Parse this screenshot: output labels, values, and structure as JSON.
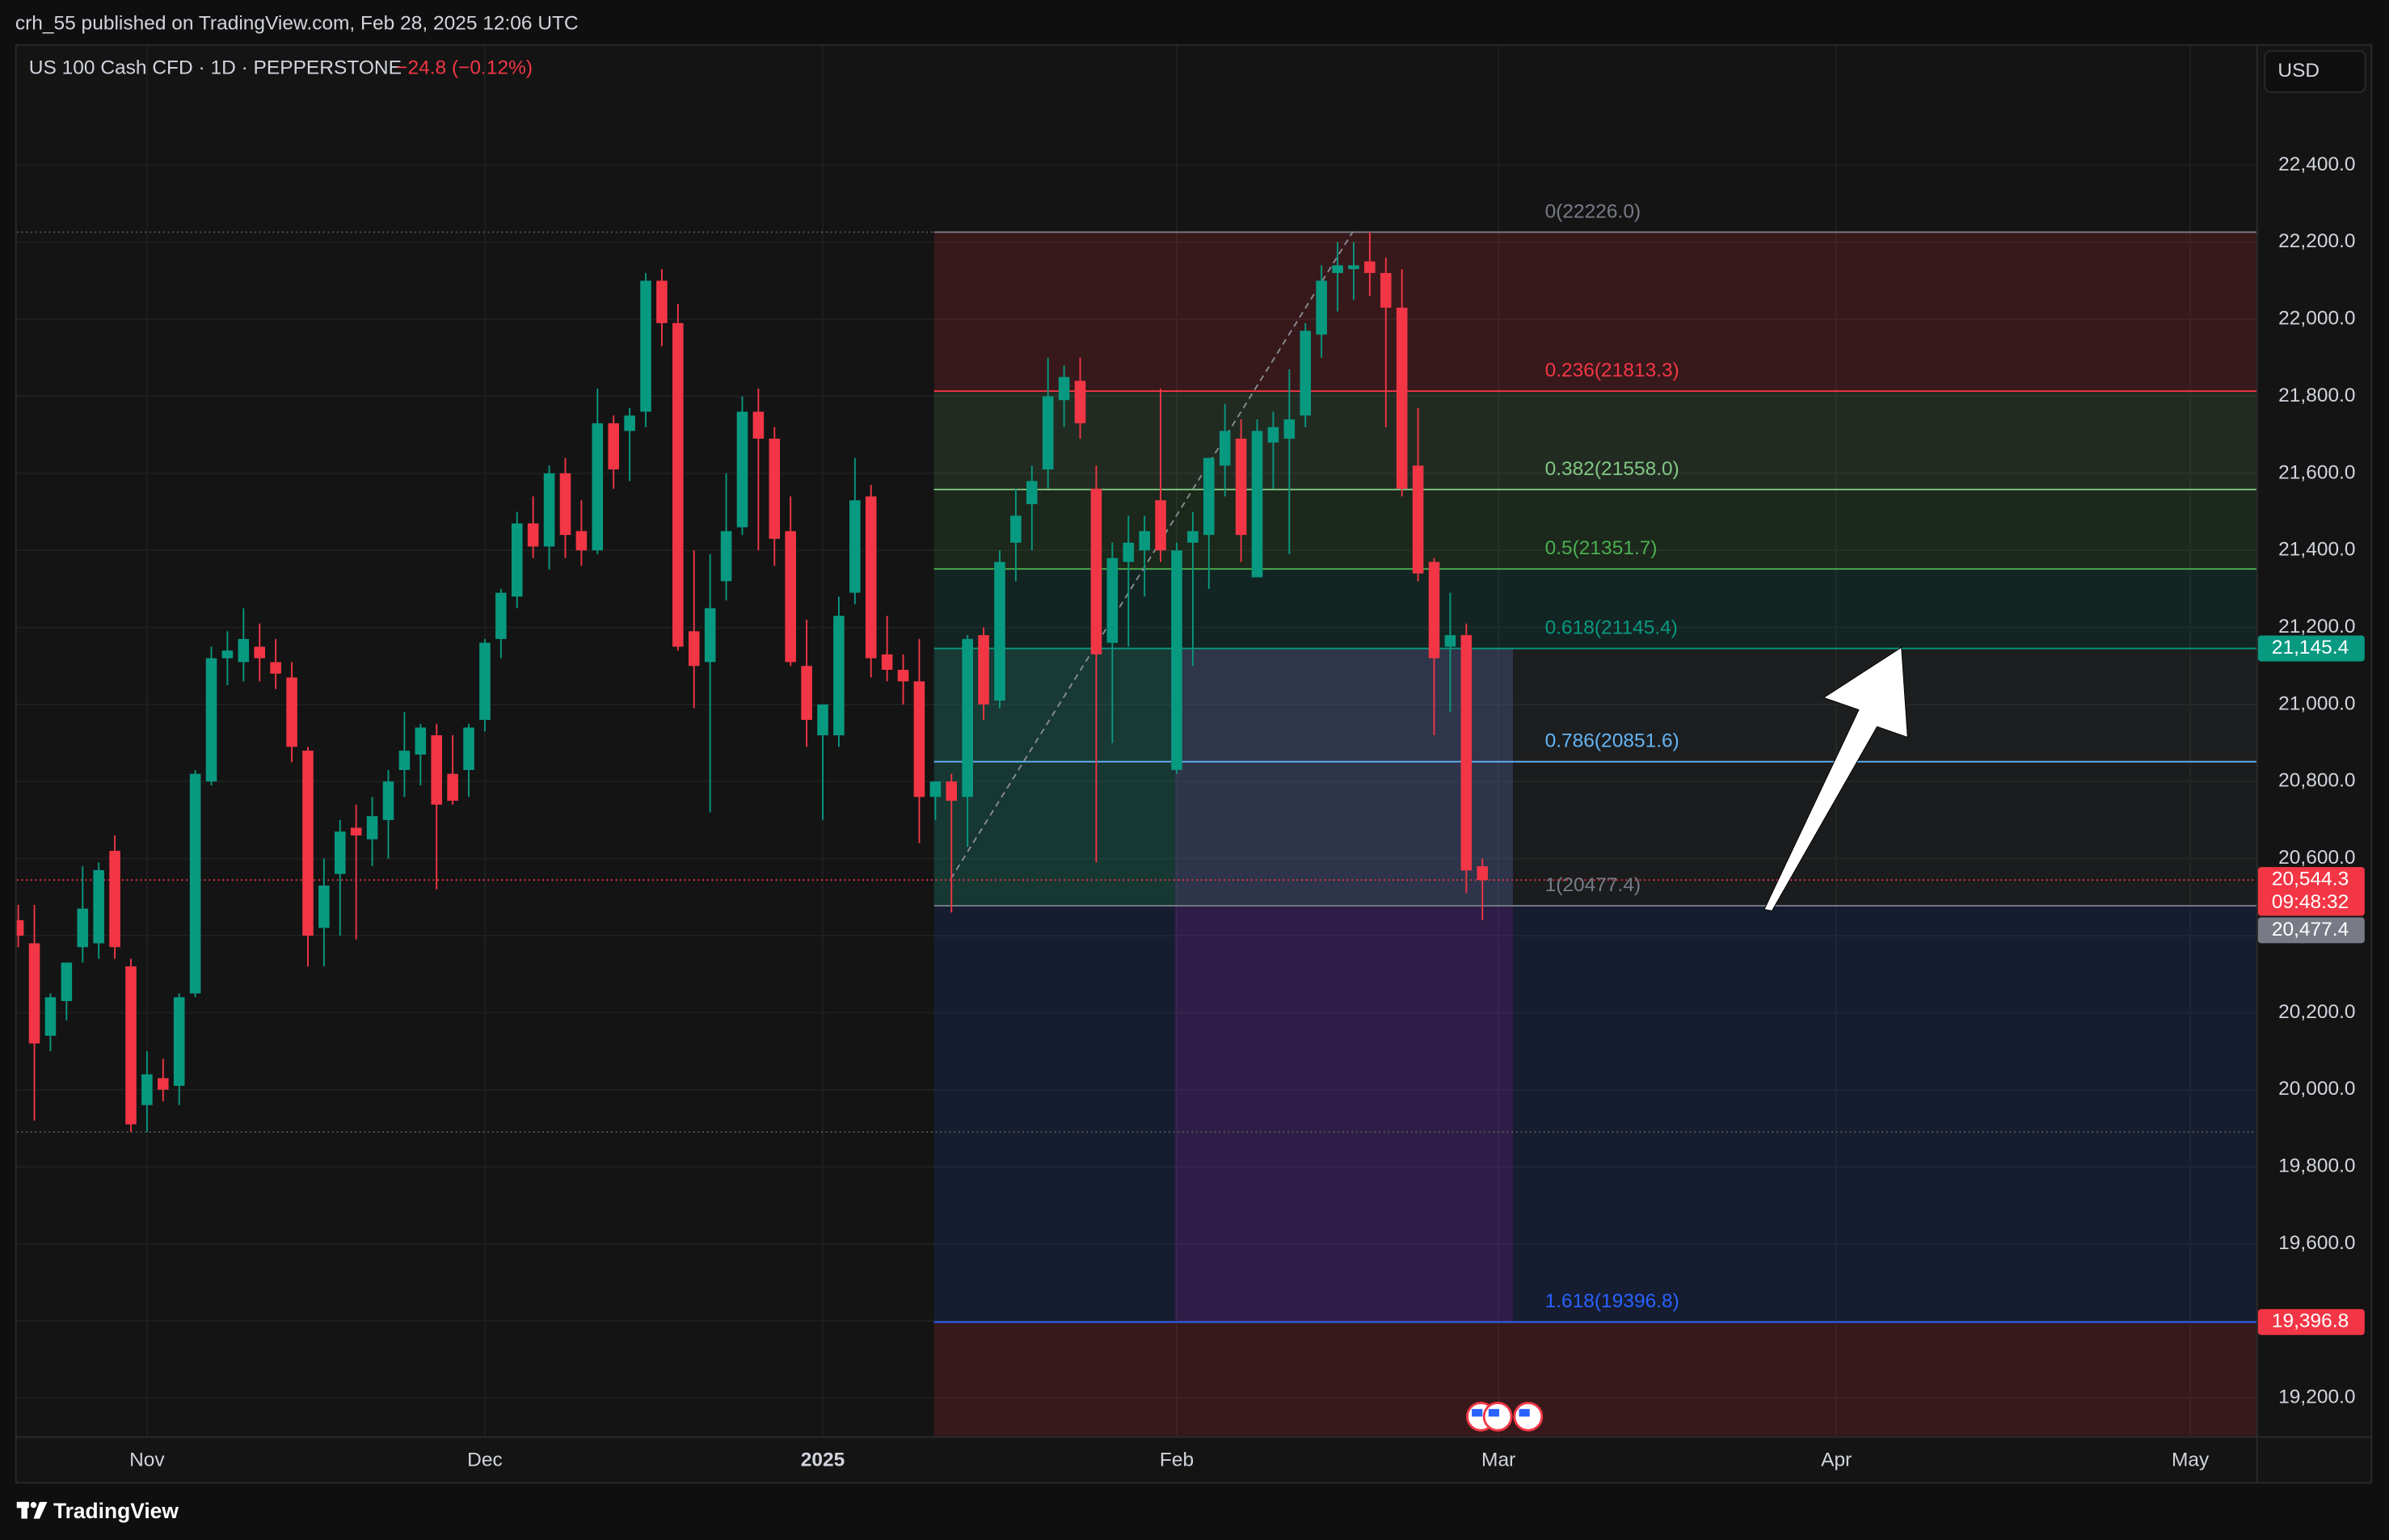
{
  "header": {
    "published": "crh_55 published on TradingView.com, Feb 28, 2025 12:06 UTC",
    "symbol": "US 100 Cash CFD · 1D · PEPPERSTONE",
    "change": "−24.8 (−0.12%)",
    "currency": "USD"
  },
  "chart_data": {
    "type": "candlestick",
    "categories": [
      null,
      null,
      null,
      null,
      null,
      null,
      null,
      null,
      "Nov",
      null,
      null,
      null,
      null,
      null,
      null,
      null,
      null,
      null,
      null,
      null,
      null,
      null,
      null,
      null,
      null,
      null,
      null,
      null,
      null,
      "Dec",
      null,
      null,
      null,
      null,
      null,
      null,
      null,
      null,
      null,
      null,
      null,
      null,
      null,
      null,
      null,
      null,
      null,
      null,
      null,
      null,
      "2025",
      null,
      null,
      null,
      null,
      null,
      null,
      null,
      null,
      null,
      null,
      null,
      null,
      null,
      null,
      null,
      null,
      null,
      null,
      null,
      null,
      null,
      "Feb",
      null,
      null,
      null,
      null,
      null,
      null,
      null,
      null,
      null,
      null,
      null,
      null,
      null,
      null,
      null,
      null,
      null,
      null,
      null,
      "Mar",
      null,
      null,
      null,
      null,
      null,
      null,
      null,
      null,
      null,
      null,
      null,
      null,
      null,
      null,
      null,
      null,
      null,
      null,
      null,
      null,
      "Apr",
      null,
      null,
      null,
      null,
      null,
      null,
      null,
      null,
      null,
      null,
      null,
      null,
      null,
      null,
      null,
      null,
      null,
      null,
      null,
      null,
      null,
      "May",
      null,
      null,
      null
    ],
    "open": [
      20440,
      20380,
      20140,
      20230,
      20370,
      20380,
      20620,
      20320,
      19960,
      20030,
      20010,
      20250,
      20800,
      21120,
      21110,
      21150,
      21110,
      21070,
      20880,
      20420,
      20560,
      20680,
      20650,
      20700,
      20830,
      20870,
      20920,
      20820,
      20830,
      20960,
      21170,
      21280,
      21470,
      21410,
      21600,
      21450,
      21400,
      21730,
      21710,
      21760,
      22100,
      21990,
      21190,
      21110,
      21320,
      21460,
      21760,
      21690,
      21450,
      21100,
      20920,
      20920,
      21290,
      21540,
      21130,
      21090,
      21060,
      20760,
      20800,
      20760,
      21180,
      21010,
      21420,
      21520,
      21610,
      21790,
      21840,
      21560,
      21160,
      21370,
      21400,
      21530,
      20830,
      21420,
      21440,
      21620,
      21690,
      21330,
      21680,
      21690,
      21750,
      21960,
      22120,
      22130,
      22150,
      22120,
      22030,
      21620,
      21370,
      21150,
      21180,
      20580,
      null,
      null,
      null,
      null,
      null,
      null,
      null,
      null,
      null,
      null,
      null,
      null,
      null,
      null,
      null,
      null,
      null,
      null,
      null,
      null,
      null,
      null,
      null,
      null,
      null,
      null,
      null,
      null,
      null,
      null,
      null,
      null,
      null,
      null,
      null,
      null,
      null,
      null,
      null,
      null,
      null,
      null,
      null,
      null,
      null,
      null,
      null
    ],
    "high": [
      20480,
      20480,
      20250,
      20330,
      20580,
      20590,
      20660,
      20340,
      20100,
      20080,
      20250,
      20830,
      21150,
      21190,
      21250,
      21210,
      21170,
      21110,
      20890,
      20600,
      20700,
      20740,
      20760,
      20830,
      20980,
      20950,
      20950,
      20920,
      20950,
      21170,
      21300,
      21500,
      21540,
      21620,
      21640,
      21530,
      21820,
      21750,
      21770,
      22120,
      22130,
      22040,
      21400,
      21390,
      21600,
      21800,
      21820,
      21720,
      21540,
      21220,
      21000,
      21280,
      21640,
      21570,
      21230,
      21130,
      21170,
      20800,
      20820,
      21180,
      21200,
      21400,
      21560,
      21620,
      21900,
      21880,
      21900,
      21620,
      21420,
      21490,
      21490,
      21820,
      21420,
      21500,
      21640,
      21780,
      21740,
      21740,
      21760,
      21870,
      21990,
      22140,
      22200,
      22200,
      22226,
      22160,
      22130,
      21770,
      21380,
      21290,
      21210,
      20600,
      null,
      null,
      null,
      null,
      null,
      null,
      null,
      null,
      null,
      null,
      null,
      null,
      null,
      null,
      null,
      null,
      null,
      null,
      null,
      null,
      null,
      null,
      null,
      null,
      null,
      null,
      null,
      null,
      null,
      null,
      null,
      null,
      null,
      null,
      null,
      null,
      null,
      null,
      null,
      null,
      null,
      null,
      null,
      null,
      null,
      null,
      null
    ],
    "low": [
      20370,
      19920,
      20100,
      20180,
      20330,
      20340,
      20340,
      19890,
      19890,
      19970,
      19960,
      20240,
      20790,
      21050,
      21060,
      21060,
      21040,
      20850,
      20320,
      20320,
      20400,
      20390,
      20580,
      20600,
      20760,
      20790,
      20520,
      20740,
      20760,
      20930,
      21120,
      21250,
      21380,
      21350,
      21380,
      21360,
      21390,
      21560,
      21580,
      21720,
      21930,
      21140,
      20990,
      20720,
      21270,
      21440,
      21400,
      21360,
      21100,
      20890,
      20700,
      20890,
      21260,
      21070,
      21060,
      21000,
      20640,
      20700,
      20460,
      20630,
      20960,
      20990,
      21320,
      21400,
      21560,
      21720,
      21690,
      20590,
      20900,
      21150,
      21280,
      21370,
      20820,
      21100,
      21300,
      21540,
      21370,
      21330,
      21560,
      21390,
      21720,
      21900,
      22020,
      22050,
      22060,
      21720,
      21540,
      21320,
      20920,
      20980,
      20510,
      20440,
      null,
      null,
      null,
      null,
      null,
      null,
      null,
      null,
      null,
      null,
      null,
      null,
      null,
      null,
      null,
      null,
      null,
      null,
      null,
      null,
      null,
      null,
      null,
      null,
      null,
      null,
      null,
      null,
      null,
      null,
      null,
      null,
      null,
      null,
      null,
      null,
      null,
      null,
      null,
      null,
      null,
      null,
      null,
      null,
      null,
      null,
      null
    ],
    "close": [
      20400,
      20120,
      20240,
      20330,
      20470,
      20570,
      20370,
      19910,
      20040,
      20000,
      20240,
      20820,
      21120,
      21140,
      21170,
      21120,
      21080,
      20890,
      20400,
      20530,
      20670,
      20660,
      20710,
      20800,
      20880,
      20940,
      20740,
      20750,
      20940,
      21160,
      21290,
      21470,
      21410,
      21600,
      21440,
      21400,
      21730,
      21610,
      21750,
      22100,
      21990,
      21150,
      21100,
      21250,
      21450,
      21760,
      21690,
      21430,
      21110,
      20960,
      21000,
      21230,
      21530,
      21120,
      21090,
      21060,
      20760,
      20800,
      20750,
      21170,
      21000,
      21370,
      21490,
      21580,
      21800,
      21850,
      21730,
      21130,
      21380,
      21420,
      21450,
      21400,
      21400,
      21450,
      21640,
      21710,
      21440,
      21710,
      21720,
      21740,
      21970,
      22100,
      22140,
      22140,
      22120,
      22030,
      21560,
      21340,
      21120,
      21180,
      20569.1,
      20544.3,
      null,
      null,
      null,
      null,
      null,
      null,
      null,
      null,
      null,
      null,
      null,
      null,
      null,
      null,
      null,
      null,
      null,
      null,
      null,
      null,
      null,
      null,
      null,
      null,
      null,
      null,
      null,
      null,
      null,
      null,
      null,
      null,
      null,
      null,
      null,
      null,
      null,
      null,
      null,
      null,
      null,
      null,
      null,
      null,
      null,
      null,
      null
    ],
    "up_color": "#089981",
    "down_color": "#f23645",
    "ylim": [
      19100,
      22710
    ],
    "yticks": [
      {
        "value": 19200,
        "label": "19,200.0"
      },
      {
        "value": 19400,
        "label": "19,400.0"
      },
      {
        "value": 19600,
        "label": "19,600.0"
      },
      {
        "value": 19800,
        "label": "19,800.0"
      },
      {
        "value": 20000,
        "label": "20,000.0"
      },
      {
        "value": 20200,
        "label": "20,200.0"
      },
      {
        "value": 20400,
        "label": "20,400.0"
      },
      {
        "value": 20600,
        "label": "20,600.0"
      },
      {
        "value": 20800,
        "label": "20,800.0"
      },
      {
        "value": 21000,
        "label": "21,000.0"
      },
      {
        "value": 21200,
        "label": "21,200.0"
      },
      {
        "value": 21400,
        "label": "21,400.0"
      },
      {
        "value": 21600,
        "label": "21,600.0"
      },
      {
        "value": 21800,
        "label": "21,800.0"
      },
      {
        "value": 22000,
        "label": "22,000.0"
      },
      {
        "value": 22200,
        "label": "22,200.0"
      },
      {
        "value": 22400,
        "label": "22,400.0"
      }
    ],
    "grid": true,
    "fib_levels": [
      {
        "value": 22226.0,
        "label": "0(22226.0)",
        "color": "#787b86"
      },
      {
        "value": 21813.3,
        "label": "0.236(21813.3)",
        "color": "#f23645"
      },
      {
        "value": 21558.0,
        "label": "0.382(21558.0)",
        "color": "#81c784"
      },
      {
        "value": 21351.7,
        "label": "0.5(21351.7)",
        "color": "#4caf50"
      },
      {
        "value": 21145.4,
        "label": "0.618(21145.4)",
        "color": "#089981"
      },
      {
        "value": 20851.6,
        "label": "0.786(20851.6)",
        "color": "#64b5f6"
      },
      {
        "value": 20477.4,
        "label": "1(20477.4)",
        "color": "#787b86"
      },
      {
        "value": 19396.8,
        "label": "1.618(19396.8)",
        "color": "#2962ff"
      }
    ],
    "price_labels": [
      {
        "value": 21145.4,
        "label": "21,145.4",
        "color": "#089981"
      },
      {
        "value": 20544.3,
        "label": "20,544.3",
        "color": "#f23645",
        "countdown": "09:48:32"
      },
      {
        "value": 20477.4,
        "label": "20,477.4",
        "color": "#787b86"
      },
      {
        "value": 19396.8,
        "label": "19,396.8",
        "color": "#f23645"
      }
    ]
  },
  "footer": {
    "brand": "TradingView"
  }
}
